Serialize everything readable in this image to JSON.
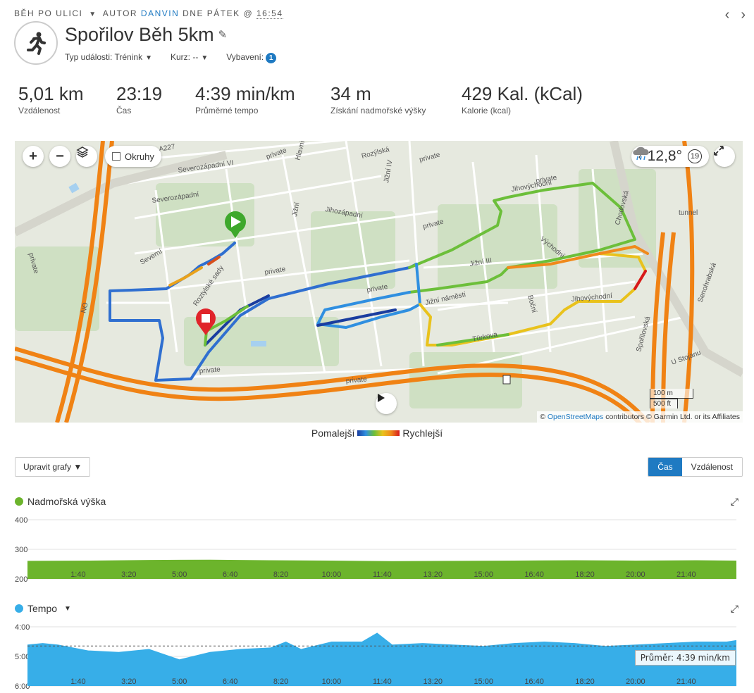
{
  "breadcrumb": {
    "category": "BĚH PO ULICI",
    "author_prefix": "AUTOR",
    "author": "DANVIN",
    "day": "DNE PÁTEK @",
    "time": "16:54"
  },
  "activity": {
    "title": "Spořilov Běh 5km",
    "event_type_label": "Typ události:",
    "event_type": "Trénink",
    "course_label": "Kurz:",
    "course": "--",
    "gear_label": "Vybavení:",
    "gear_count": "1",
    "icon": "runner-icon"
  },
  "stats": [
    {
      "value": "5,01 km",
      "label": "Vzdálenost"
    },
    {
      "value": "23:19",
      "label": "Čas"
    },
    {
      "value": "4:39 min/km",
      "label": "Průměrné tempo"
    },
    {
      "value": "34 m",
      "label": "Získání nadmořské výšky"
    },
    {
      "value": "429 Kal. (kCal)",
      "label": "Kalorie (kcal)"
    }
  ],
  "map": {
    "laps_label": "Okruhy",
    "temperature": "12,8°",
    "wind": "19",
    "weather_icon": "rain-cloud-icon",
    "scale_metric": "100 m",
    "scale_imperial": "500 ft",
    "attribution_prefix": "©",
    "attribution_link": "OpenStreetMaps",
    "attribution_rest": "contributors © Garmin Ltd. or its Affiliates",
    "street_labels": [
      "Severozápadní VI",
      "Severozápadní",
      "Hlavní",
      "Rozýlská",
      "Jižní IV",
      "Jihozápadní",
      "Jižní náměstí",
      "Jihovýchodní",
      "Roztylské sady",
      "Severní",
      "Jižní",
      "Türkova",
      "U Stojanu",
      "Senohrabská",
      "Spořilovská",
      "Chodovská",
      "A227",
      "private",
      "NO",
      "tunnel",
      "Jihovýchodní",
      "Boční",
      "Jižní III",
      "Východní"
    ]
  },
  "legend": {
    "slower": "Pomalejší",
    "faster": "Rychlejší"
  },
  "controls": {
    "edit_charts": "Upravit grafy ▼",
    "time": "Čas",
    "distance": "Vzdálenost"
  },
  "colors": {
    "accent": "#1f7ac2",
    "elevation": "#6cb42c",
    "pace": "#37aee8"
  },
  "elevation_chart": {
    "title": "Nadmořská výška",
    "y_ticks": [
      "400",
      "300",
      "200"
    ],
    "ylim": [
      200,
      400
    ],
    "x_ticks": [
      "1:40",
      "3:20",
      "5:00",
      "6:40",
      "8:20",
      "10:00",
      "11:40",
      "13:20",
      "15:00",
      "16:40",
      "18:20",
      "20:00",
      "21:40"
    ]
  },
  "pace_chart": {
    "title": "Tempo",
    "y_ticks": [
      "4:00",
      "5:00",
      "6:00"
    ],
    "x_ticks": [
      "1:40",
      "3:20",
      "5:00",
      "6:40",
      "8:20",
      "10:00",
      "11:40",
      "13:20",
      "15:00",
      "16:40",
      "18:20",
      "20:00",
      "21:40"
    ],
    "average_label": "Průměr: 4:39 min/km"
  },
  "chart_data": [
    {
      "type": "area",
      "title": "Nadmořská výška",
      "ylim": [
        200,
        400
      ],
      "x": [
        "0:00",
        "2:00",
        "4:00",
        "6:00",
        "8:00",
        "10:00",
        "12:00",
        "14:00",
        "16:00",
        "18:00",
        "20:00",
        "22:00",
        "23:19"
      ],
      "values": [
        261,
        262,
        264,
        265,
        263,
        262,
        260,
        261,
        262,
        263,
        262,
        263,
        262
      ]
    },
    {
      "type": "area",
      "title": "Tempo",
      "ylim": [
        "4:00",
        "6:00"
      ],
      "x": [
        "0:00",
        "0:30",
        "1:00",
        "2:00",
        "3:00",
        "4:00",
        "5:00",
        "6:00",
        "7:00",
        "8:00",
        "8:30",
        "9:00",
        "10:00",
        "11:00",
        "11:30",
        "12:00",
        "13:00",
        "14:00",
        "15:00",
        "16:00",
        "17:00",
        "18:00",
        "19:00",
        "20:00",
        "21:00",
        "22:00",
        "23:00",
        "23:19"
      ],
      "values": [
        4.6,
        4.55,
        4.6,
        4.8,
        4.85,
        4.75,
        5.1,
        4.85,
        4.75,
        4.7,
        4.5,
        4.75,
        4.5,
        4.5,
        4.2,
        4.6,
        4.55,
        4.6,
        4.65,
        4.55,
        4.5,
        4.55,
        4.65,
        4.6,
        4.55,
        4.5,
        4.5,
        4.45
      ]
    }
  ]
}
